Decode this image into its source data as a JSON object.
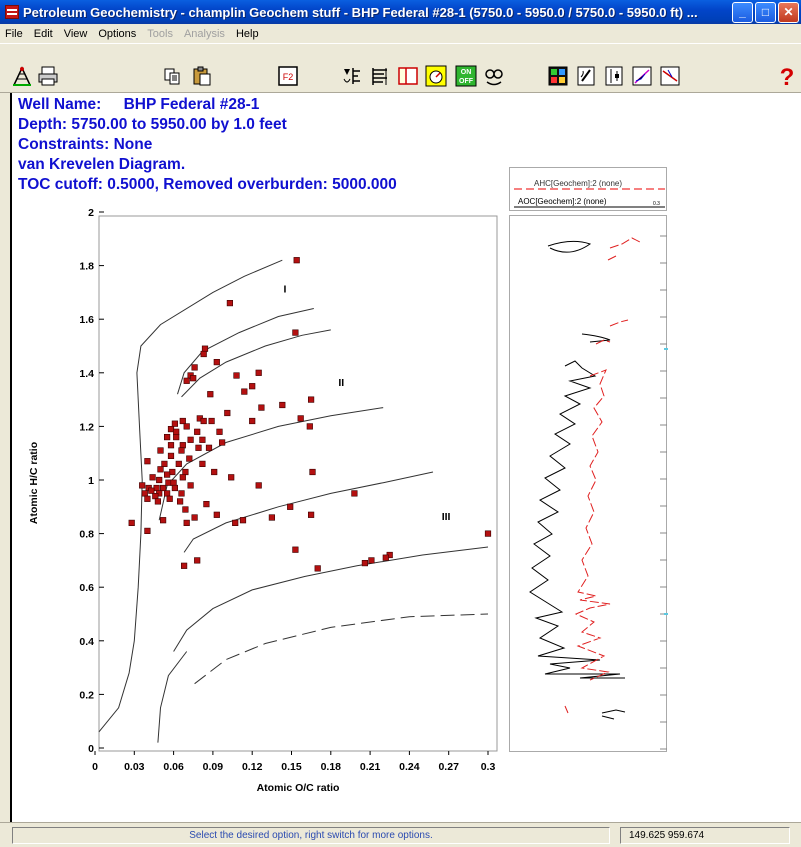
{
  "window": {
    "title": "Petroleum Geochemistry - champlin Geochem stuff - BHP Federal #28-1 (5750.0 - 5950.0 / 5750.0 - 5950.0 ft) ...",
    "minimize": "_",
    "maximize": "□",
    "close": "✕"
  },
  "menu": [
    {
      "label": "File",
      "enabled": true
    },
    {
      "label": "Edit",
      "enabled": true
    },
    {
      "label": "View",
      "enabled": true
    },
    {
      "label": "Options",
      "enabled": true
    },
    {
      "label": "Tools",
      "enabled": false
    },
    {
      "label": "Analysis",
      "enabled": false
    },
    {
      "label": "Help",
      "enabled": true
    }
  ],
  "toolbar": {
    "icons": [
      "well-icon",
      "print-icon",
      "copy-icon",
      "paste-icon",
      "f2-icon",
      "geochem-icon",
      "log-list-icon",
      "layout-icon",
      "gauge-icon",
      "on-off-icon",
      "oil-gas-icon",
      "color-grid-icon",
      "pencil-log-icon",
      "depth-icon",
      "crossplot-icon",
      "line-plot-icon",
      "help-icon"
    ],
    "f2_label": "F2",
    "on_label": "ON",
    "off_label": "OFF",
    "help_label": "?"
  },
  "header": {
    "well_label": "Well Name:",
    "well_name": "BHP Federal #28-1",
    "depth": "Depth:  5750.00 to 5950.00 by  1.0 feet",
    "constraints": "Constraints: None",
    "diagram": "van Krevelen Diagram.",
    "cutoff": "TOC cutoff: 0.5000,  Removed overburden: 5000.000"
  },
  "legend": {
    "ahc": "AHC[Geochem]:2 (none)",
    "aoc": "AOC[Geochem]:2 (none)",
    "aoc_scale": "0.3"
  },
  "chart_data": {
    "type": "scatter",
    "xlabel": "Atomic O/C ratio",
    "ylabel": "Atomic H/C ratio",
    "xlim": [
      0,
      0.3
    ],
    "ylim": [
      0,
      2
    ],
    "x_ticks": [
      "0",
      "0.03",
      "0.06",
      "0.09",
      "0.12",
      "0.15",
      "0.18",
      "0.21",
      "0.24",
      "0.27",
      "0.3"
    ],
    "y_ticks": [
      "0",
      "0.2",
      "0.4",
      "0.6",
      "0.8",
      "1",
      "1.2",
      "1.4",
      "1.6",
      "1.8",
      "2"
    ],
    "zone_labels": [
      {
        "text": "I",
        "x": 0.145,
        "y": 1.7
      },
      {
        "text": "II",
        "x": 0.188,
        "y": 1.35
      },
      {
        "text": "III",
        "x": 0.268,
        "y": 0.85
      }
    ],
    "boundary_curves": [
      [
        [
          0.003,
          0.06
        ],
        [
          0.018,
          0.15
        ],
        [
          0.026,
          0.28
        ],
        [
          0.03,
          0.4
        ],
        [
          0.033,
          0.6
        ],
        [
          0.035,
          0.8
        ],
        [
          0.036,
          1.0
        ],
        [
          0.034,
          1.2
        ],
        [
          0.032,
          1.4
        ],
        [
          0.035,
          1.5
        ],
        [
          0.05,
          1.58
        ],
        [
          0.09,
          1.7
        ],
        [
          0.114,
          1.76
        ],
        [
          0.143,
          1.82
        ]
      ],
      [
        [
          0.063,
          1.32
        ],
        [
          0.068,
          1.4
        ],
        [
          0.082,
          1.48
        ],
        [
          0.11,
          1.55
        ],
        [
          0.14,
          1.61
        ],
        [
          0.167,
          1.64
        ]
      ],
      [
        [
          0.066,
          1.31
        ],
        [
          0.08,
          1.38
        ],
        [
          0.1,
          1.44
        ],
        [
          0.13,
          1.5
        ],
        [
          0.158,
          1.54
        ],
        [
          0.18,
          1.56
        ]
      ],
      [
        [
          0.049,
          0.85
        ],
        [
          0.055,
          0.98
        ],
        [
          0.07,
          1.06
        ],
        [
          0.1,
          1.14
        ],
        [
          0.14,
          1.2
        ],
        [
          0.18,
          1.24
        ],
        [
          0.22,
          1.27
        ]
      ],
      [
        [
          0.068,
          0.73
        ],
        [
          0.075,
          0.78
        ],
        [
          0.1,
          0.84
        ],
        [
          0.14,
          0.9
        ],
        [
          0.18,
          0.95
        ],
        [
          0.22,
          0.99
        ],
        [
          0.258,
          1.03
        ]
      ],
      [
        [
          0.06,
          0.36
        ],
        [
          0.07,
          0.44
        ],
        [
          0.09,
          0.52
        ],
        [
          0.12,
          0.59
        ],
        [
          0.16,
          0.64
        ],
        [
          0.2,
          0.68
        ],
        [
          0.25,
          0.72
        ],
        [
          0.3,
          0.75
        ]
      ],
      [
        [
          0.048,
          0.02
        ],
        [
          0.05,
          0.15
        ],
        [
          0.056,
          0.27
        ],
        [
          0.07,
          0.36
        ]
      ]
    ],
    "dashed_curves": [
      [
        [
          0.076,
          0.24
        ],
        [
          0.1,
          0.33
        ],
        [
          0.13,
          0.39
        ],
        [
          0.18,
          0.45
        ],
        [
          0.24,
          0.49
        ],
        [
          0.3,
          0.5
        ]
      ]
    ],
    "points": [
      [
        0.154,
        1.82
      ],
      [
        0.103,
        1.66
      ],
      [
        0.153,
        1.55
      ],
      [
        0.084,
        1.49
      ],
      [
        0.083,
        1.47
      ],
      [
        0.093,
        1.44
      ],
      [
        0.076,
        1.42
      ],
      [
        0.073,
        1.39
      ],
      [
        0.07,
        1.37
      ],
      [
        0.075,
        1.38
      ],
      [
        0.108,
        1.39
      ],
      [
        0.125,
        1.4
      ],
      [
        0.12,
        1.35
      ],
      [
        0.114,
        1.33
      ],
      [
        0.088,
        1.32
      ],
      [
        0.143,
        1.28
      ],
      [
        0.165,
        1.3
      ],
      [
        0.127,
        1.27
      ],
      [
        0.101,
        1.25
      ],
      [
        0.157,
        1.23
      ],
      [
        0.12,
        1.22
      ],
      [
        0.061,
        1.21
      ],
      [
        0.067,
        1.22
      ],
      [
        0.08,
        1.23
      ],
      [
        0.083,
        1.22
      ],
      [
        0.089,
        1.22
      ],
      [
        0.07,
        1.2
      ],
      [
        0.058,
        1.19
      ],
      [
        0.062,
        1.18
      ],
      [
        0.078,
        1.18
      ],
      [
        0.095,
        1.18
      ],
      [
        0.164,
        1.2
      ],
      [
        0.055,
        1.16
      ],
      [
        0.062,
        1.16
      ],
      [
        0.073,
        1.15
      ],
      [
        0.082,
        1.15
      ],
      [
        0.097,
        1.14
      ],
      [
        0.058,
        1.13
      ],
      [
        0.067,
        1.13
      ],
      [
        0.079,
        1.12
      ],
      [
        0.087,
        1.12
      ],
      [
        0.05,
        1.11
      ],
      [
        0.066,
        1.11
      ],
      [
        0.058,
        1.09
      ],
      [
        0.072,
        1.08
      ],
      [
        0.04,
        1.07
      ],
      [
        0.053,
        1.06
      ],
      [
        0.064,
        1.06
      ],
      [
        0.082,
        1.06
      ],
      [
        0.05,
        1.04
      ],
      [
        0.059,
        1.03
      ],
      [
        0.069,
        1.03
      ],
      [
        0.091,
        1.03
      ],
      [
        0.055,
        1.02
      ],
      [
        0.067,
        1.01
      ],
      [
        0.044,
        1.01
      ],
      [
        0.049,
        1.0
      ],
      [
        0.056,
        0.99
      ],
      [
        0.06,
        0.99
      ],
      [
        0.073,
        0.98
      ],
      [
        0.104,
        1.01
      ],
      [
        0.125,
        0.98
      ],
      [
        0.166,
        1.03
      ],
      [
        0.036,
        0.98
      ],
      [
        0.041,
        0.97
      ],
      [
        0.047,
        0.97
      ],
      [
        0.052,
        0.97
      ],
      [
        0.061,
        0.97
      ],
      [
        0.043,
        0.96
      ],
      [
        0.049,
        0.95
      ],
      [
        0.055,
        0.95
      ],
      [
        0.066,
        0.95
      ],
      [
        0.038,
        0.95
      ],
      [
        0.04,
        0.93
      ],
      [
        0.046,
        0.94
      ],
      [
        0.048,
        0.92
      ],
      [
        0.057,
        0.93
      ],
      [
        0.065,
        0.92
      ],
      [
        0.085,
        0.91
      ],
      [
        0.069,
        0.89
      ],
      [
        0.093,
        0.87
      ],
      [
        0.076,
        0.86
      ],
      [
        0.052,
        0.85
      ],
      [
        0.149,
        0.9
      ],
      [
        0.165,
        0.87
      ],
      [
        0.198,
        0.95
      ],
      [
        0.135,
        0.86
      ],
      [
        0.107,
        0.84
      ],
      [
        0.113,
        0.85
      ],
      [
        0.07,
        0.84
      ],
      [
        0.028,
        0.84
      ],
      [
        0.04,
        0.81
      ],
      [
        0.3,
        0.8
      ],
      [
        0.153,
        0.74
      ],
      [
        0.078,
        0.7
      ],
      [
        0.068,
        0.68
      ],
      [
        0.17,
        0.67
      ],
      [
        0.206,
        0.69
      ],
      [
        0.211,
        0.7
      ],
      [
        0.225,
        0.72
      ],
      [
        0.222,
        0.71
      ]
    ]
  },
  "status": {
    "message": "Select the desired option, right switch for more options.",
    "coords": "149.625  959.674"
  }
}
